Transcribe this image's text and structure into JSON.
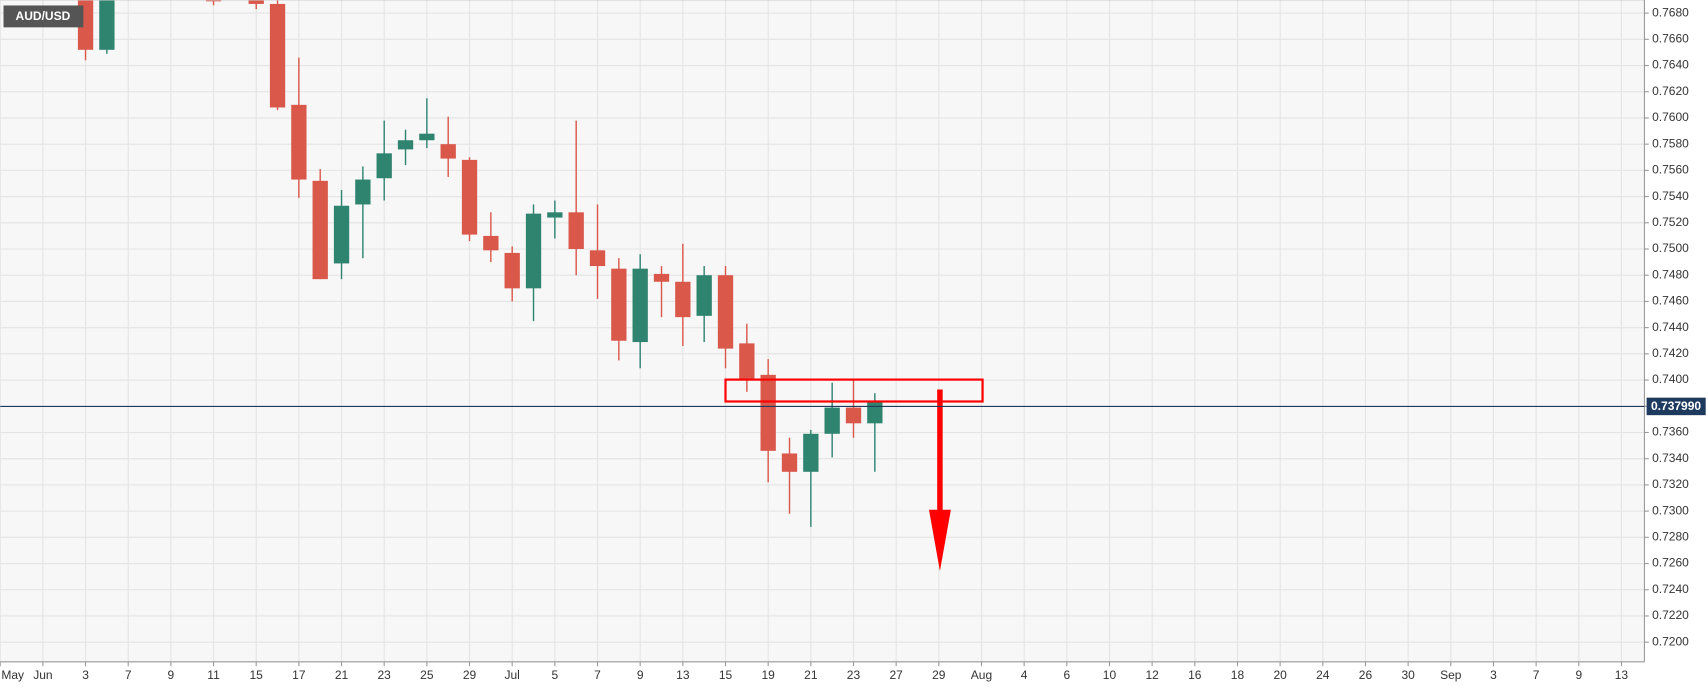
{
  "chart_data": {
    "type": "candlestick",
    "symbol": "AUD/USD",
    "categories": [
      "May",
      null,
      "Jun",
      null,
      "3",
      null,
      "7",
      null,
      "9",
      null,
      "11",
      null,
      "15",
      null,
      "17",
      null,
      "21",
      null,
      "23",
      null,
      "25",
      null,
      "29",
      null,
      "Jul",
      null,
      "5",
      null,
      "7",
      null,
      "9",
      null,
      "13",
      null,
      "15",
      null,
      "19",
      null,
      "21",
      null,
      "23",
      null,
      "27",
      null,
      "29",
      null,
      "Aug",
      null,
      "4",
      null,
      "6",
      null,
      "10",
      null,
      "12",
      null,
      "16",
      null,
      "18",
      null,
      "20",
      null,
      "24",
      null,
      "26",
      null,
      "30",
      null,
      "Sep",
      null,
      "3",
      null,
      "7",
      null,
      "9",
      null,
      "13"
    ],
    "open": [
      null,
      null,
      null,
      null,
      0.769,
      0.7652,
      null,
      null,
      null,
      null,
      0.769,
      null,
      0.769,
      0.7687,
      0.761,
      0.7552,
      0.7489,
      0.7534,
      0.7554,
      0.7576,
      0.7583,
      0.758,
      0.7568,
      0.751,
      0.7497,
      0.747,
      0.7524,
      0.7528,
      0.7499,
      0.7485,
      0.7429,
      0.7481,
      0.7475,
      0.7449,
      0.748,
      0.7428,
      0.7404,
      0.7344,
      0.733,
      0.7359,
      0.7379,
      0.7367,
      null,
      null,
      null,
      null,
      null,
      null,
      null,
      null,
      null,
      null,
      null,
      null,
      null,
      null,
      null,
      null,
      null,
      null,
      null,
      null,
      null,
      null,
      null,
      null,
      null,
      null,
      null,
      null,
      null,
      null,
      null,
      null,
      null,
      null,
      null
    ],
    "high": [
      null,
      null,
      null,
      null,
      0.769,
      0.769,
      null,
      null,
      null,
      null,
      0.769,
      null,
      0.769,
      0.769,
      0.7646,
      0.7561,
      0.7545,
      0.7563,
      0.7598,
      0.7591,
      0.7615,
      0.7601,
      0.757,
      0.7528,
      0.7502,
      0.7534,
      0.7537,
      0.7598,
      0.7534,
      0.7493,
      0.7496,
      0.7487,
      0.7504,
      0.7487,
      0.7487,
      0.7443,
      0.7416,
      0.7356,
      0.7362,
      0.7398,
      0.7401,
      0.739,
      null,
      null,
      null,
      null,
      null,
      null,
      null,
      null,
      null,
      null,
      null,
      null,
      null,
      null,
      null,
      null,
      null,
      null,
      null,
      null,
      null,
      null,
      null,
      null,
      null,
      null,
      null,
      null,
      null,
      null,
      null,
      null,
      null,
      null,
      null
    ],
    "low": [
      null,
      null,
      null,
      null,
      0.7644,
      0.7649,
      null,
      null,
      null,
      null,
      0.7686,
      null,
      0.7683,
      0.7606,
      0.7539,
      0.7477,
      0.7477,
      0.7493,
      0.7537,
      0.7564,
      0.7577,
      0.7555,
      0.7506,
      0.749,
      0.746,
      0.7445,
      0.7508,
      0.748,
      0.7462,
      0.7415,
      0.7409,
      0.7448,
      0.7426,
      0.7429,
      0.7409,
      0.7391,
      0.7322,
      0.7298,
      0.7288,
      0.7341,
      0.7356,
      0.733,
      null,
      null,
      null,
      null,
      null,
      null,
      null,
      null,
      null,
      null,
      null,
      null,
      null,
      null,
      null,
      null,
      null,
      null,
      null,
      null,
      null,
      null,
      null,
      null,
      null,
      null,
      null,
      null,
      null,
      null,
      null,
      null,
      null,
      null,
      null
    ],
    "close": [
      null,
      null,
      null,
      null,
      0.7652,
      0.769,
      null,
      null,
      null,
      null,
      0.7689,
      null,
      0.7687,
      0.7608,
      0.7553,
      0.7477,
      0.7533,
      0.7553,
      0.7573,
      0.7583,
      0.7588,
      0.7569,
      0.7511,
      0.7499,
      0.747,
      0.7527,
      0.7528,
      0.75,
      0.7487,
      0.743,
      0.7485,
      0.7475,
      0.7448,
      0.748,
      0.7424,
      0.74,
      0.7346,
      0.733,
      0.7359,
      0.7379,
      0.7367,
      0.7384,
      null,
      null,
      null,
      null,
      null,
      null,
      null,
      null,
      null,
      null,
      null,
      null,
      null,
      null,
      null,
      null,
      null,
      null,
      null,
      null,
      null,
      null,
      null,
      null,
      null,
      null,
      null,
      null,
      null,
      null,
      null,
      null,
      null,
      null,
      null
    ],
    "up_color": "#2f8470",
    "down_color": "#d9584a",
    "ylim": [
      0.7185,
      0.769
    ],
    "yticks": [
      {
        "value": 0.72,
        "label": "0.7200"
      },
      {
        "value": 0.722,
        "label": "0.7220"
      },
      {
        "value": 0.724,
        "label": "0.7240"
      },
      {
        "value": 0.726,
        "label": "0.7260"
      },
      {
        "value": 0.728,
        "label": "0.7280"
      },
      {
        "value": 0.73,
        "label": "0.7300"
      },
      {
        "value": 0.732,
        "label": "0.7320"
      },
      {
        "value": 0.734,
        "label": "0.7340"
      },
      {
        "value": 0.736,
        "label": "0.7360"
      },
      {
        "value": 0.738,
        "label": "0.7380"
      },
      {
        "value": 0.74,
        "label": "0.7400"
      },
      {
        "value": 0.742,
        "label": "0.7420"
      },
      {
        "value": 0.744,
        "label": "0.7440"
      },
      {
        "value": 0.746,
        "label": "0.7460"
      },
      {
        "value": 0.748,
        "label": "0.7480"
      },
      {
        "value": 0.75,
        "label": "0.7500"
      },
      {
        "value": 0.752,
        "label": "0.7520"
      },
      {
        "value": 0.754,
        "label": "0.7540"
      },
      {
        "value": 0.756,
        "label": "0.7560"
      },
      {
        "value": 0.758,
        "label": "0.7580"
      },
      {
        "value": 0.76,
        "label": "0.7600"
      },
      {
        "value": 0.762,
        "label": "0.7620"
      },
      {
        "value": 0.764,
        "label": "0.7640"
      },
      {
        "value": 0.766,
        "label": "0.7660"
      },
      {
        "value": 0.768,
        "label": "0.7680"
      }
    ],
    "current_price": {
      "value": 0.73799,
      "label": "0.737990"
    },
    "grid": true
  }
}
